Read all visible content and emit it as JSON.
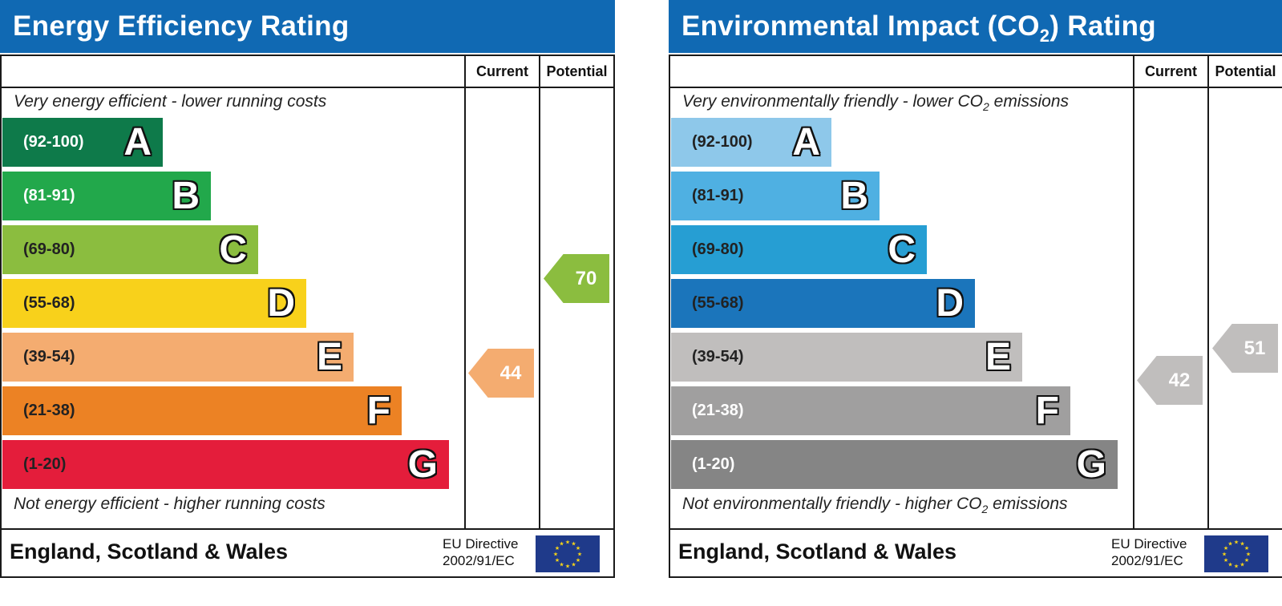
{
  "chart_data": [
    {
      "type": "bar",
      "title": "Energy Efficiency Rating",
      "columns": {
        "current": "Current",
        "potential": "Potential"
      },
      "top_caption": "Very energy efficient - lower running costs",
      "bottom_caption": "Not energy efficient - higher running costs",
      "bands": [
        {
          "range": "(92-100)",
          "letter": "A",
          "color": "#0e7a4a",
          "range_color": "#ffffff"
        },
        {
          "range": "(81-91)",
          "letter": "B",
          "color": "#22a84b",
          "range_color": "#ffffff"
        },
        {
          "range": "(69-80)",
          "letter": "C",
          "color": "#8bbd3f",
          "range_color": "#222222"
        },
        {
          "range": "(55-68)",
          "letter": "D",
          "color": "#f8d11b",
          "range_color": "#222222"
        },
        {
          "range": "(39-54)",
          "letter": "E",
          "color": "#f4ac70",
          "range_color": "#222222"
        },
        {
          "range": "(21-38)",
          "letter": "F",
          "color": "#ec8224",
          "range_color": "#222222"
        },
        {
          "range": "(1-20)",
          "letter": "G",
          "color": "#e41d3b",
          "range_color": "#222222"
        }
      ],
      "current": {
        "value": 44,
        "color": "#f4ac70"
      },
      "potential": {
        "value": 70,
        "color": "#8bbd3f"
      },
      "footer": {
        "region": "England, Scotland & Wales",
        "directive_line1": "EU Directive",
        "directive_line2": "2002/91/EC"
      }
    },
    {
      "type": "bar",
      "title_pre": "Environmental Impact (CO",
      "title_sub": "2",
      "title_post": ") Rating",
      "columns": {
        "current": "Current",
        "potential": "Potential"
      },
      "top_caption_pre": "Very environmentally friendly - lower CO",
      "top_caption_sub": "2",
      "top_caption_post": " emissions",
      "bottom_caption_pre": "Not environmentally friendly - higher CO",
      "bottom_caption_sub": "2",
      "bottom_caption_post": " emissions",
      "bands": [
        {
          "range": "(92-100)",
          "letter": "A",
          "color": "#8ec8ea",
          "range_color": "#222222"
        },
        {
          "range": "(81-91)",
          "letter": "B",
          "color": "#4fb0e2",
          "range_color": "#222222"
        },
        {
          "range": "(69-80)",
          "letter": "C",
          "color": "#269ed3",
          "range_color": "#222222"
        },
        {
          "range": "(55-68)",
          "letter": "D",
          "color": "#1b75bb",
          "range_color": "#222222"
        },
        {
          "range": "(39-54)",
          "letter": "E",
          "color": "#c0bebd",
          "range_color": "#222222"
        },
        {
          "range": "(21-38)",
          "letter": "F",
          "color": "#a09f9f",
          "range_color": "#ffffff"
        },
        {
          "range": "(1-20)",
          "letter": "G",
          "color": "#858585",
          "range_color": "#ffffff"
        }
      ],
      "current": {
        "value": 42,
        "color": "#c0bebd"
      },
      "potential": {
        "value": 51,
        "color": "#c0bebd"
      },
      "footer": {
        "region": "England, Scotland & Wales",
        "directive_line1": "EU Directive",
        "directive_line2": "2002/91/EC"
      }
    }
  ]
}
